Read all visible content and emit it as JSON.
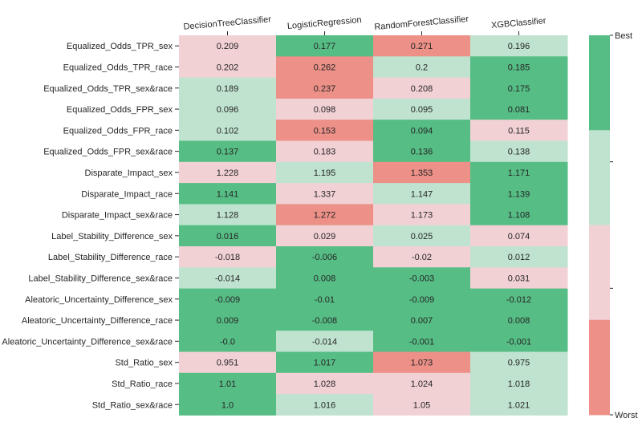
{
  "chart_data": {
    "type": "heatmap",
    "columns": [
      "DecisionTreeClassifier",
      "LogisticRegression",
      "RandomForestClassifier",
      "XGBClassifier"
    ],
    "rows": [
      "Equalized_Odds_TPR_sex",
      "Equalized_Odds_TPR_race",
      "Equalized_Odds_TPR_sex&race",
      "Equalized_Odds_FPR_sex",
      "Equalized_Odds_FPR_race",
      "Equalized_Odds_FPR_sex&race",
      "Disparate_Impact_sex",
      "Disparate_Impact_race",
      "Disparate_Impact_sex&race",
      "Label_Stability_Difference_sex",
      "Label_Stability_Difference_race",
      "Label_Stability_Difference_sex&race",
      "Aleatoric_Uncertainty_Difference_sex",
      "Aleatoric_Uncertainty_Difference_race",
      "Aleatoric_Uncertainty_Difference_sex&race",
      "Std_Ratio_sex",
      "Std_Ratio_race",
      "Std_Ratio_sex&race"
    ],
    "values": [
      [
        "0.209",
        "0.177",
        "0.271",
        "0.196"
      ],
      [
        "0.202",
        "0.262",
        "0.2",
        "0.185"
      ],
      [
        "0.189",
        "0.237",
        "0.208",
        "0.175"
      ],
      [
        "0.096",
        "0.098",
        "0.095",
        "0.081"
      ],
      [
        "0.102",
        "0.153",
        "0.094",
        "0.115"
      ],
      [
        "0.137",
        "0.183",
        "0.136",
        "0.138"
      ],
      [
        "1.228",
        "1.195",
        "1.353",
        "1.171"
      ],
      [
        "1.141",
        "1.337",
        "1.147",
        "1.139"
      ],
      [
        "1.128",
        "1.272",
        "1.173",
        "1.108"
      ],
      [
        "0.016",
        "0.029",
        "0.025",
        "0.074"
      ],
      [
        "-0.018",
        "-0.006",
        "-0.02",
        "0.012"
      ],
      [
        "-0.014",
        "0.008",
        "-0.003",
        "0.031"
      ],
      [
        "-0.009",
        "-0.01",
        "-0.009",
        "-0.012"
      ],
      [
        "0.009",
        "-0.008",
        "0.007",
        "0.008"
      ],
      [
        "-0.0",
        "-0.014",
        "-0.001",
        "-0.001"
      ],
      [
        "0.951",
        "1.017",
        "1.073",
        "0.975"
      ],
      [
        "1.01",
        "1.028",
        "1.024",
        "1.018"
      ],
      [
        "1.0",
        "1.016",
        "1.05",
        "1.021"
      ]
    ],
    "ranks": [
      [
        3,
        1,
        4,
        2
      ],
      [
        3,
        4,
        2,
        1
      ],
      [
        2,
        4,
        3,
        1
      ],
      [
        2,
        3,
        2,
        1
      ],
      [
        2,
        4,
        1,
        3
      ],
      [
        1,
        3,
        1,
        2
      ],
      [
        3,
        2,
        4,
        1
      ],
      [
        1,
        3,
        2,
        1
      ],
      [
        2,
        4,
        3,
        1
      ],
      [
        1,
        3,
        2,
        3
      ],
      [
        3,
        1,
        3,
        2
      ],
      [
        2,
        1,
        1,
        3
      ],
      [
        1,
        1,
        1,
        1
      ],
      [
        1,
        1,
        1,
        1
      ],
      [
        1,
        2,
        1,
        1
      ],
      [
        3,
        1,
        4,
        2
      ],
      [
        1,
        3,
        3,
        2
      ],
      [
        1,
        2,
        3,
        2
      ]
    ],
    "rank_colors": {
      "1": "#56bd85",
      "2": "#bfe3cf",
      "3": "#f2d1d5",
      "4": "#ec9088"
    },
    "colorbar": {
      "top_label": "Best",
      "bottom_label": "Worst",
      "colors_top_to_bottom": [
        "#56bd85",
        "#bfe3cf",
        "#f2d1d5",
        "#ec9088"
      ]
    }
  }
}
